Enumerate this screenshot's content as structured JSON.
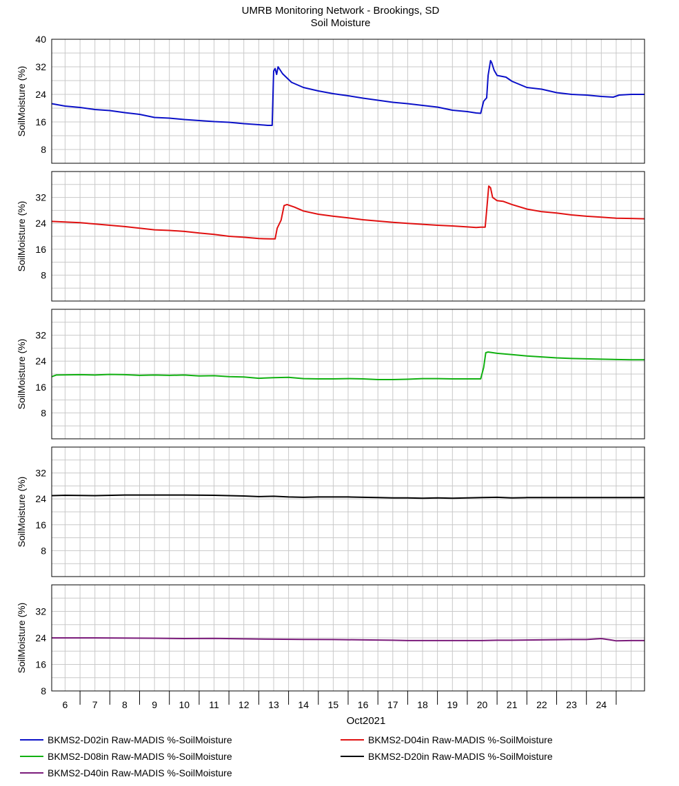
{
  "chart_data": {
    "type": "line",
    "title": "UMRB Monitoring Network - Brookings, SD",
    "subtitle": "Soil Moisture",
    "xlabel": "Oct2021",
    "ylabel": "SoilMoisture (%)",
    "x_tick_labels": [
      "6",
      "7",
      "8",
      "9",
      "10",
      "11",
      "12",
      "13",
      "14",
      "15",
      "16",
      "17",
      "18",
      "19",
      "20",
      "21",
      "22",
      "23",
      "24"
    ],
    "xlim": [
      5.55,
      25.45
    ],
    "grid": true,
    "legend_position": "bottom",
    "panels": [
      {
        "ylim": [
          4,
          40
        ],
        "yticks": [
          "8",
          "16",
          "24",
          "32",
          "40"
        ],
        "series": {
          "name": "BKMS2-D02in Raw-MADIS %-SoilMoisture",
          "color": "#0a10c8",
          "points": [
            [
              5.55,
              21.3
            ],
            [
              6.0,
              20.6
            ],
            [
              6.5,
              20.2
            ],
            [
              7.0,
              19.6
            ],
            [
              7.5,
              19.3
            ],
            [
              8.0,
              18.7
            ],
            [
              8.5,
              18.2
            ],
            [
              9.0,
              17.3
            ],
            [
              9.5,
              17.1
            ],
            [
              10.0,
              16.7
            ],
            [
              10.5,
              16.4
            ],
            [
              11.0,
              16.1
            ],
            [
              11.5,
              15.9
            ],
            [
              12.0,
              15.5
            ],
            [
              12.5,
              15.2
            ],
            [
              12.8,
              15.0
            ],
            [
              12.95,
              15.0
            ],
            [
              13.0,
              30.8
            ],
            [
              13.05,
              31.5
            ],
            [
              13.1,
              29.8
            ],
            [
              13.15,
              32.0
            ],
            [
              13.3,
              30.0
            ],
            [
              13.6,
              27.5
            ],
            [
              14.0,
              26.0
            ],
            [
              14.5,
              25.0
            ],
            [
              15.0,
              24.2
            ],
            [
              15.5,
              23.6
            ],
            [
              16.0,
              22.9
            ],
            [
              16.5,
              22.3
            ],
            [
              17.0,
              21.7
            ],
            [
              17.5,
              21.3
            ],
            [
              18.0,
              20.8
            ],
            [
              18.5,
              20.3
            ],
            [
              19.0,
              19.4
            ],
            [
              19.5,
              19.0
            ],
            [
              19.8,
              18.6
            ],
            [
              19.95,
              18.5
            ],
            [
              20.05,
              22.0
            ],
            [
              20.15,
              23.0
            ],
            [
              20.2,
              29.5
            ],
            [
              20.28,
              33.8
            ],
            [
              20.32,
              33.2
            ],
            [
              20.4,
              31.0
            ],
            [
              20.5,
              29.5
            ],
            [
              20.8,
              29.0
            ],
            [
              21.0,
              27.8
            ],
            [
              21.5,
              26.0
            ],
            [
              22.0,
              25.5
            ],
            [
              22.5,
              24.5
            ],
            [
              23.0,
              24.0
            ],
            [
              23.5,
              23.8
            ],
            [
              24.0,
              23.4
            ],
            [
              24.4,
              23.2
            ],
            [
              24.6,
              23.8
            ],
            [
              25.0,
              24.0
            ],
            [
              25.45,
              24.0
            ]
          ]
        }
      },
      {
        "ylim": [
          0,
          40
        ],
        "yticks": [
          "8",
          "16",
          "24",
          "32"
        ],
        "series": {
          "name": "BKMS2-D04in Raw-MADIS %-SoilMoisture",
          "color": "#e01010",
          "points": [
            [
              5.55,
              24.6
            ],
            [
              6.0,
              24.4
            ],
            [
              6.5,
              24.2
            ],
            [
              7.0,
              23.8
            ],
            [
              7.5,
              23.4
            ],
            [
              8.0,
              23.0
            ],
            [
              8.5,
              22.5
            ],
            [
              9.0,
              22.0
            ],
            [
              9.5,
              21.8
            ],
            [
              10.0,
              21.5
            ],
            [
              10.5,
              21.0
            ],
            [
              11.0,
              20.6
            ],
            [
              11.5,
              20.0
            ],
            [
              12.0,
              19.7
            ],
            [
              12.5,
              19.3
            ],
            [
              12.9,
              19.2
            ],
            [
              13.05,
              19.2
            ],
            [
              13.12,
              22.5
            ],
            [
              13.25,
              25.0
            ],
            [
              13.35,
              29.5
            ],
            [
              13.45,
              29.8
            ],
            [
              13.7,
              29.0
            ],
            [
              14.0,
              27.8
            ],
            [
              14.5,
              26.8
            ],
            [
              15.0,
              26.2
            ],
            [
              15.5,
              25.7
            ],
            [
              16.0,
              25.1
            ],
            [
              16.5,
              24.7
            ],
            [
              17.0,
              24.3
            ],
            [
              17.5,
              24.0
            ],
            [
              18.0,
              23.7
            ],
            [
              18.5,
              23.4
            ],
            [
              19.0,
              23.2
            ],
            [
              19.5,
              22.9
            ],
            [
              19.8,
              22.7
            ],
            [
              19.95,
              22.8
            ],
            [
              20.1,
              22.8
            ],
            [
              20.15,
              28.0
            ],
            [
              20.22,
              35.5
            ],
            [
              20.28,
              35.0
            ],
            [
              20.35,
              32.0
            ],
            [
              20.5,
              31.0
            ],
            [
              20.7,
              30.8
            ],
            [
              21.0,
              29.8
            ],
            [
              21.5,
              28.4
            ],
            [
              22.0,
              27.6
            ],
            [
              22.5,
              27.2
            ],
            [
              23.0,
              26.6
            ],
            [
              23.5,
              26.2
            ],
            [
              24.0,
              25.9
            ],
            [
              24.5,
              25.6
            ],
            [
              25.0,
              25.5
            ],
            [
              25.45,
              25.4
            ]
          ]
        }
      },
      {
        "ylim": [
          0,
          40
        ],
        "yticks": [
          "8",
          "16",
          "24",
          "32"
        ],
        "series": {
          "name": "BKMS2-D08in Raw-MADIS %-SoilMoisture",
          "color": "#10b010",
          "points": [
            [
              5.55,
              19.2
            ],
            [
              5.7,
              19.7
            ],
            [
              6.5,
              19.8
            ],
            [
              7.0,
              19.7
            ],
            [
              7.5,
              19.9
            ],
            [
              8.0,
              19.8
            ],
            [
              8.5,
              19.6
            ],
            [
              9.0,
              19.7
            ],
            [
              9.5,
              19.6
            ],
            [
              10.0,
              19.7
            ],
            [
              10.5,
              19.4
            ],
            [
              11.0,
              19.5
            ],
            [
              11.5,
              19.2
            ],
            [
              12.0,
              19.1
            ],
            [
              12.5,
              18.7
            ],
            [
              13.0,
              18.9
            ],
            [
              13.5,
              19.0
            ],
            [
              14.0,
              18.6
            ],
            [
              14.5,
              18.5
            ],
            [
              15.0,
              18.5
            ],
            [
              15.5,
              18.6
            ],
            [
              16.0,
              18.5
            ],
            [
              16.5,
              18.3
            ],
            [
              17.0,
              18.3
            ],
            [
              17.5,
              18.4
            ],
            [
              18.0,
              18.6
            ],
            [
              18.5,
              18.6
            ],
            [
              19.0,
              18.5
            ],
            [
              19.5,
              18.5
            ],
            [
              19.8,
              18.5
            ],
            [
              19.95,
              18.5
            ],
            [
              20.05,
              22.0
            ],
            [
              20.12,
              26.6
            ],
            [
              20.2,
              26.8
            ],
            [
              20.5,
              26.4
            ],
            [
              21.0,
              26.0
            ],
            [
              21.5,
              25.6
            ],
            [
              22.0,
              25.3
            ],
            [
              22.5,
              25.0
            ],
            [
              23.0,
              24.8
            ],
            [
              23.5,
              24.7
            ],
            [
              24.0,
              24.6
            ],
            [
              24.5,
              24.5
            ],
            [
              25.0,
              24.4
            ],
            [
              25.45,
              24.4
            ]
          ]
        }
      },
      {
        "ylim": [
          0,
          40
        ],
        "yticks": [
          "8",
          "16",
          "24",
          "32"
        ],
        "series": {
          "name": "BKMS2-D20in Raw-MADIS %-SoilMoisture",
          "color": "#000000",
          "points": [
            [
              5.55,
              25.0
            ],
            [
              6.0,
              25.1
            ],
            [
              7.0,
              25.0
            ],
            [
              8.0,
              25.2
            ],
            [
              9.0,
              25.2
            ],
            [
              10.0,
              25.2
            ],
            [
              11.0,
              25.1
            ],
            [
              11.5,
              25.0
            ],
            [
              12.0,
              24.9
            ],
            [
              12.5,
              24.7
            ],
            [
              13.0,
              24.8
            ],
            [
              13.5,
              24.6
            ],
            [
              14.0,
              24.5
            ],
            [
              14.5,
              24.6
            ],
            [
              15.0,
              24.6
            ],
            [
              15.5,
              24.6
            ],
            [
              16.0,
              24.5
            ],
            [
              16.5,
              24.4
            ],
            [
              17.0,
              24.3
            ],
            [
              17.5,
              24.3
            ],
            [
              18.0,
              24.2
            ],
            [
              18.5,
              24.3
            ],
            [
              19.0,
              24.2
            ],
            [
              19.5,
              24.3
            ],
            [
              20.0,
              24.4
            ],
            [
              20.5,
              24.5
            ],
            [
              21.0,
              24.3
            ],
            [
              21.5,
              24.4
            ],
            [
              22.0,
              24.4
            ],
            [
              22.5,
              24.4
            ],
            [
              23.0,
              24.4
            ],
            [
              23.5,
              24.4
            ],
            [
              24.0,
              24.4
            ],
            [
              24.5,
              24.4
            ],
            [
              25.0,
              24.4
            ],
            [
              25.45,
              24.4
            ]
          ]
        }
      },
      {
        "ylim": [
          8,
          40
        ],
        "yticks": [
          "8",
          "16",
          "24",
          "32"
        ],
        "series": {
          "name": "BKMS2-D40in Raw-MADIS %-SoilMoisture",
          "color": "#7a1a7a",
          "points": [
            [
              5.55,
              24.0
            ],
            [
              6.0,
              24.0
            ],
            [
              7.0,
              24.0
            ],
            [
              8.0,
              23.95
            ],
            [
              9.0,
              23.9
            ],
            [
              10.0,
              23.8
            ],
            [
              11.0,
              23.85
            ],
            [
              12.0,
              23.7
            ],
            [
              13.0,
              23.6
            ],
            [
              14.0,
              23.55
            ],
            [
              15.0,
              23.5
            ],
            [
              16.0,
              23.4
            ],
            [
              17.0,
              23.3
            ],
            [
              17.5,
              23.2
            ],
            [
              18.0,
              23.2
            ],
            [
              19.0,
              23.2
            ],
            [
              20.0,
              23.2
            ],
            [
              20.5,
              23.3
            ],
            [
              21.0,
              23.3
            ],
            [
              22.0,
              23.4
            ],
            [
              23.0,
              23.5
            ],
            [
              23.5,
              23.5
            ],
            [
              24.0,
              23.8
            ],
            [
              24.3,
              23.4
            ],
            [
              24.5,
              23.1
            ],
            [
              25.0,
              23.2
            ],
            [
              25.45,
              23.2
            ]
          ]
        }
      }
    ]
  }
}
